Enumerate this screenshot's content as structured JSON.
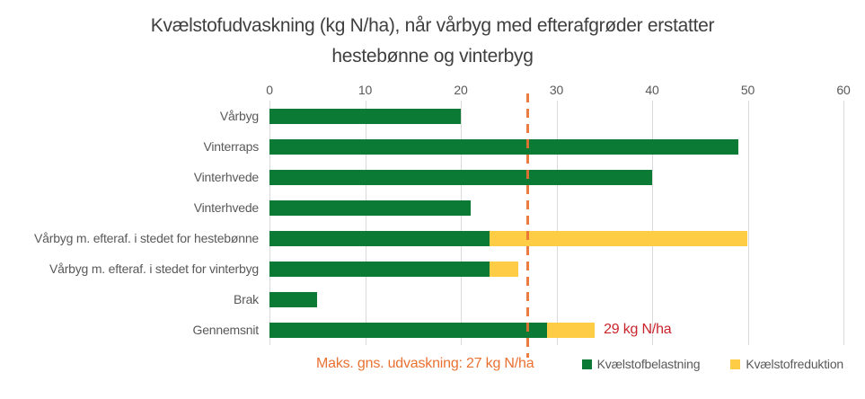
{
  "title": "Kvælstofudvaskning (kg N/ha), når vårbyg med efterafgrøder erstatter hestebønne og vinterbyg",
  "chart_data": {
    "type": "bar",
    "orientation": "horizontal",
    "title": "Kvælstofudvaskning (kg N/ha), når vårbyg med efterafgrøder erstatter hestebønne og vinterbyg",
    "xlim": [
      0,
      60
    ],
    "xticks": [
      0,
      10,
      20,
      30,
      40,
      50,
      60
    ],
    "grid": true,
    "categories": [
      "Vårbyg",
      "Vinterraps",
      "Vinterhvede",
      "Vinterhvede",
      "Vårbyg m. efteraf. i stedet for hestebønne",
      "Vårbyg m. efteraf. i stedet for vinterbyg",
      "Brak",
      "Gennemsnit"
    ],
    "series": [
      {
        "name": "Kvælstofbelastning",
        "color": "#0b7a34",
        "values": [
          20,
          49,
          40,
          21,
          23,
          23,
          5,
          29
        ]
      },
      {
        "name": "Kvælstofreduktion",
        "color": "#ffcc45",
        "values": [
          0,
          0,
          0,
          0,
          27,
          3,
          0,
          5
        ]
      }
    ],
    "reference_line": {
      "value": 27,
      "label": "Maks. gns. udvaskning: 27 kg N/ha",
      "color": "#e97132",
      "style": "dashed"
    },
    "annotation": {
      "text": "29 kg N/ha",
      "category": "Gennemsnit",
      "color": "#c9242b"
    },
    "legend_position": "bottom-right",
    "colors": {
      "gridline": "#d9d9d9",
      "axis_text": "#595959",
      "title_text": "#3f3f3f"
    }
  }
}
